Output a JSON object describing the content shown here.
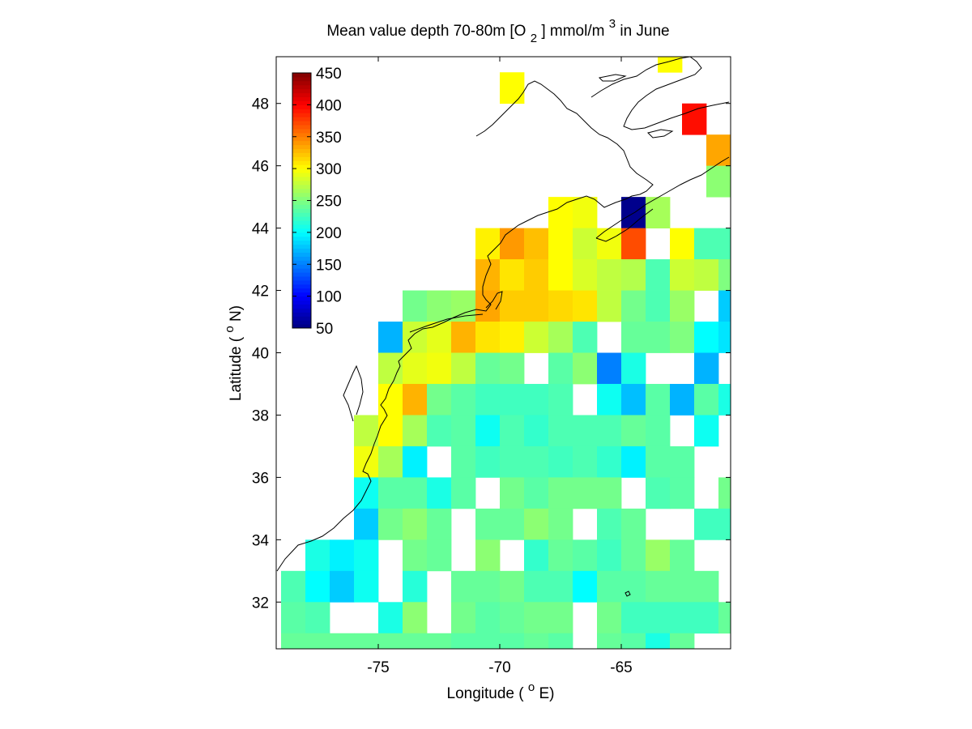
{
  "figure": {
    "title": {
      "prefix": "Mean value depth 70-80m [O",
      "sub": "2",
      "middle": "] mmol/m",
      "sup": "3",
      "suffix": " in June"
    },
    "xlabel": {
      "text": "Longitude (",
      "sup": "o",
      "unit": "E)"
    },
    "ylabel": {
      "text": "Latitude (",
      "sup": "o",
      "unit": "N)"
    }
  },
  "colorbar": {
    "colormap": "jet",
    "min": 50,
    "max": 450,
    "ticks": [
      450,
      400,
      350,
      300,
      250,
      200,
      150,
      100,
      50
    ]
  },
  "chart_data": {
    "type": "heatmap",
    "x_label": "Longitude ( oE)",
    "y_label": "Latitude ( oN)",
    "xlim": [
      -79.2,
      -60.5
    ],
    "ylim": [
      30.5,
      49.5
    ],
    "x_ticks": [
      "-75",
      "-70",
      "-65"
    ],
    "x_tick_values": [
      -75,
      -70,
      -65
    ],
    "y_ticks": [
      "32",
      "34",
      "36",
      "38",
      "40",
      "42",
      "44",
      "46",
      "48"
    ],
    "y_tick_values": [
      32,
      34,
      36,
      38,
      40,
      42,
      44,
      46,
      48
    ],
    "cell_size_deg": 1,
    "grid_lon_start": -79.5,
    "grid_lat_start": 30.5,
    "units": "mmol/m3",
    "value_range": [
      50,
      450
    ],
    "cells": [
      [
        -63.0,
        49.5,
        300
      ],
      [
        -69.5,
        48.5,
        300
      ],
      [
        -62.0,
        47.5,
        395
      ],
      [
        -61.0,
        46.5,
        335
      ],
      [
        -61.0,
        45.5,
        255
      ],
      [
        -67.5,
        44.5,
        300
      ],
      [
        -66.5,
        44.5,
        295
      ],
      [
        -64.5,
        44.5,
        55
      ],
      [
        -63.5,
        44.5,
        265
      ],
      [
        -70.5,
        43.5,
        305
      ],
      [
        -69.5,
        43.5,
        340
      ],
      [
        -68.5,
        43.5,
        325
      ],
      [
        -67.5,
        43.5,
        300
      ],
      [
        -66.5,
        43.5,
        280
      ],
      [
        -65.5,
        43.5,
        295
      ],
      [
        -64.5,
        43.5,
        370
      ],
      [
        -62.5,
        43.5,
        300
      ],
      [
        -61.5,
        43.5,
        230
      ],
      [
        -60.5,
        43.5,
        230
      ],
      [
        -70.5,
        42.5,
        330
      ],
      [
        -69.5,
        42.5,
        310
      ],
      [
        -68.5,
        42.5,
        320
      ],
      [
        -67.5,
        42.5,
        300
      ],
      [
        -66.5,
        42.5,
        285
      ],
      [
        -65.5,
        42.5,
        275
      ],
      [
        -64.5,
        42.5,
        270
      ],
      [
        -63.5,
        42.5,
        230
      ],
      [
        -62.5,
        42.5,
        280
      ],
      [
        -61.5,
        42.5,
        275
      ],
      [
        -60.5,
        42.5,
        250
      ],
      [
        -73.5,
        41.5,
        245
      ],
      [
        -72.5,
        41.5,
        255
      ],
      [
        -71.5,
        41.5,
        260
      ],
      [
        -70.5,
        41.5,
        335
      ],
      [
        -69.5,
        41.5,
        320
      ],
      [
        -68.5,
        41.5,
        320
      ],
      [
        -67.5,
        41.5,
        315
      ],
      [
        -66.5,
        41.5,
        310
      ],
      [
        -65.5,
        41.5,
        275
      ],
      [
        -64.5,
        41.5,
        245
      ],
      [
        -63.5,
        41.5,
        230
      ],
      [
        -62.5,
        41.5,
        260
      ],
      [
        -60.5,
        41.5,
        180
      ],
      [
        -74.5,
        40.5,
        170
      ],
      [
        -73.5,
        40.5,
        280
      ],
      [
        -72.5,
        40.5,
        290
      ],
      [
        -71.5,
        40.5,
        330
      ],
      [
        -70.5,
        40.5,
        310
      ],
      [
        -69.5,
        40.5,
        305
      ],
      [
        -68.5,
        40.5,
        280
      ],
      [
        -67.5,
        40.5,
        265
      ],
      [
        -66.5,
        40.5,
        230
      ],
      [
        -64.5,
        40.5,
        240
      ],
      [
        -63.5,
        40.5,
        240
      ],
      [
        -62.5,
        40.5,
        250
      ],
      [
        -61.5,
        40.5,
        200
      ],
      [
        -60.5,
        40.5,
        190
      ],
      [
        -74.5,
        39.5,
        275
      ],
      [
        -73.5,
        39.5,
        290
      ],
      [
        -72.5,
        39.5,
        295
      ],
      [
        -71.5,
        39.5,
        275
      ],
      [
        -70.5,
        39.5,
        240
      ],
      [
        -69.5,
        39.5,
        245
      ],
      [
        -67.5,
        39.5,
        235
      ],
      [
        -66.5,
        39.5,
        255
      ],
      [
        -65.5,
        39.5,
        150
      ],
      [
        -64.5,
        39.5,
        210
      ],
      [
        -61.5,
        39.5,
        170
      ],
      [
        -74.5,
        38.5,
        300
      ],
      [
        -73.5,
        38.5,
        330
      ],
      [
        -72.5,
        38.5,
        245
      ],
      [
        -71.5,
        38.5,
        235
      ],
      [
        -70.5,
        38.5,
        225
      ],
      [
        -69.5,
        38.5,
        225
      ],
      [
        -68.5,
        38.5,
        225
      ],
      [
        -67.5,
        38.5,
        230
      ],
      [
        -65.5,
        38.5,
        205
      ],
      [
        -64.5,
        38.5,
        175
      ],
      [
        -63.5,
        38.5,
        235
      ],
      [
        -62.5,
        38.5,
        170
      ],
      [
        -61.5,
        38.5,
        235
      ],
      [
        -60.5,
        38.5,
        210
      ],
      [
        -75.5,
        37.5,
        275
      ],
      [
        -74.5,
        37.5,
        300
      ],
      [
        -73.5,
        37.5,
        265
      ],
      [
        -72.5,
        37.5,
        230
      ],
      [
        -71.5,
        37.5,
        235
      ],
      [
        -70.5,
        37.5,
        205
      ],
      [
        -69.5,
        37.5,
        230
      ],
      [
        -68.5,
        37.5,
        220
      ],
      [
        -67.5,
        37.5,
        230
      ],
      [
        -66.5,
        37.5,
        230
      ],
      [
        -65.5,
        37.5,
        230
      ],
      [
        -64.5,
        37.5,
        240
      ],
      [
        -63.5,
        37.5,
        235
      ],
      [
        -61.5,
        37.5,
        205
      ],
      [
        -75.5,
        36.5,
        295
      ],
      [
        -74.5,
        36.5,
        265
      ],
      [
        -73.5,
        36.5,
        195
      ],
      [
        -71.5,
        36.5,
        235
      ],
      [
        -70.5,
        36.5,
        225
      ],
      [
        -69.5,
        36.5,
        230
      ],
      [
        -68.5,
        36.5,
        230
      ],
      [
        -67.5,
        36.5,
        225
      ],
      [
        -66.5,
        36.5,
        230
      ],
      [
        -65.5,
        36.5,
        220
      ],
      [
        -64.5,
        36.5,
        195
      ],
      [
        -63.5,
        36.5,
        235
      ],
      [
        -62.5,
        36.5,
        235
      ],
      [
        -75.5,
        35.5,
        205
      ],
      [
        -74.5,
        35.5,
        235
      ],
      [
        -73.5,
        35.5,
        235
      ],
      [
        -72.5,
        35.5,
        210
      ],
      [
        -71.5,
        35.5,
        235
      ],
      [
        -69.5,
        35.5,
        245
      ],
      [
        -68.5,
        35.5,
        235
      ],
      [
        -67.5,
        35.5,
        245
      ],
      [
        -66.5,
        35.5,
        245
      ],
      [
        -65.5,
        35.5,
        245
      ],
      [
        -63.5,
        35.5,
        230
      ],
      [
        -62.5,
        35.5,
        235
      ],
      [
        -60.5,
        35.5,
        245
      ],
      [
        -75.5,
        34.5,
        180
      ],
      [
        -74.5,
        34.5,
        245
      ],
      [
        -73.5,
        34.5,
        255
      ],
      [
        -72.5,
        34.5,
        240
      ],
      [
        -70.5,
        34.5,
        240
      ],
      [
        -69.5,
        34.5,
        240
      ],
      [
        -68.5,
        34.5,
        255
      ],
      [
        -67.5,
        34.5,
        245
      ],
      [
        -65.5,
        34.5,
        230
      ],
      [
        -64.5,
        34.5,
        240
      ],
      [
        -61.5,
        34.5,
        225
      ],
      [
        -60.5,
        34.5,
        225
      ],
      [
        -77.5,
        33.5,
        210
      ],
      [
        -76.5,
        33.5,
        195
      ],
      [
        -75.5,
        33.5,
        205
      ],
      [
        -73.5,
        33.5,
        245
      ],
      [
        -72.5,
        33.5,
        240
      ],
      [
        -70.5,
        33.5,
        255
      ],
      [
        -68.5,
        33.5,
        220
      ],
      [
        -67.5,
        33.5,
        240
      ],
      [
        -66.5,
        33.5,
        235
      ],
      [
        -65.5,
        33.5,
        225
      ],
      [
        -64.5,
        33.5,
        240
      ],
      [
        -63.5,
        33.5,
        260
      ],
      [
        -62.5,
        33.5,
        240
      ],
      [
        -78.5,
        32.5,
        230
      ],
      [
        -77.5,
        32.5,
        200
      ],
      [
        -76.5,
        32.5,
        180
      ],
      [
        -75.5,
        32.5,
        205
      ],
      [
        -73.5,
        32.5,
        215
      ],
      [
        -71.5,
        32.5,
        240
      ],
      [
        -70.5,
        32.5,
        240
      ],
      [
        -69.5,
        32.5,
        245
      ],
      [
        -68.5,
        32.5,
        230
      ],
      [
        -67.5,
        32.5,
        230
      ],
      [
        -66.5,
        32.5,
        200
      ],
      [
        -65.5,
        32.5,
        235
      ],
      [
        -64.5,
        32.5,
        235
      ],
      [
        -63.5,
        32.5,
        240
      ],
      [
        -62.5,
        32.5,
        240
      ],
      [
        -61.5,
        32.5,
        240
      ],
      [
        -78.5,
        31.5,
        235
      ],
      [
        -77.5,
        31.5,
        230
      ],
      [
        -74.5,
        31.5,
        210
      ],
      [
        -73.5,
        31.5,
        255
      ],
      [
        -71.5,
        31.5,
        245
      ],
      [
        -70.5,
        31.5,
        235
      ],
      [
        -69.5,
        31.5,
        240
      ],
      [
        -68.5,
        31.5,
        245
      ],
      [
        -67.5,
        31.5,
        245
      ],
      [
        -65.5,
        31.5,
        245
      ],
      [
        -64.5,
        31.5,
        225
      ],
      [
        -63.5,
        31.5,
        225
      ],
      [
        -62.5,
        31.5,
        225
      ],
      [
        -61.5,
        31.5,
        225
      ],
      [
        -60.5,
        31.5,
        240
      ],
      [
        -78.5,
        30.5,
        240
      ],
      [
        -77.5,
        30.5,
        240
      ],
      [
        -76.5,
        30.5,
        240
      ],
      [
        -75.5,
        30.5,
        240
      ],
      [
        -74.5,
        30.5,
        240
      ],
      [
        -73.5,
        30.5,
        240
      ],
      [
        -72.5,
        30.5,
        240
      ],
      [
        -71.5,
        30.5,
        235
      ],
      [
        -70.5,
        30.5,
        235
      ],
      [
        -69.5,
        30.5,
        235
      ],
      [
        -68.5,
        30.5,
        240
      ],
      [
        -67.5,
        30.5,
        235
      ],
      [
        -65.5,
        30.5,
        240
      ],
      [
        -64.5,
        30.5,
        235
      ],
      [
        -63.5,
        30.5,
        210
      ],
      [
        -62.5,
        30.5,
        240
      ]
    ]
  }
}
